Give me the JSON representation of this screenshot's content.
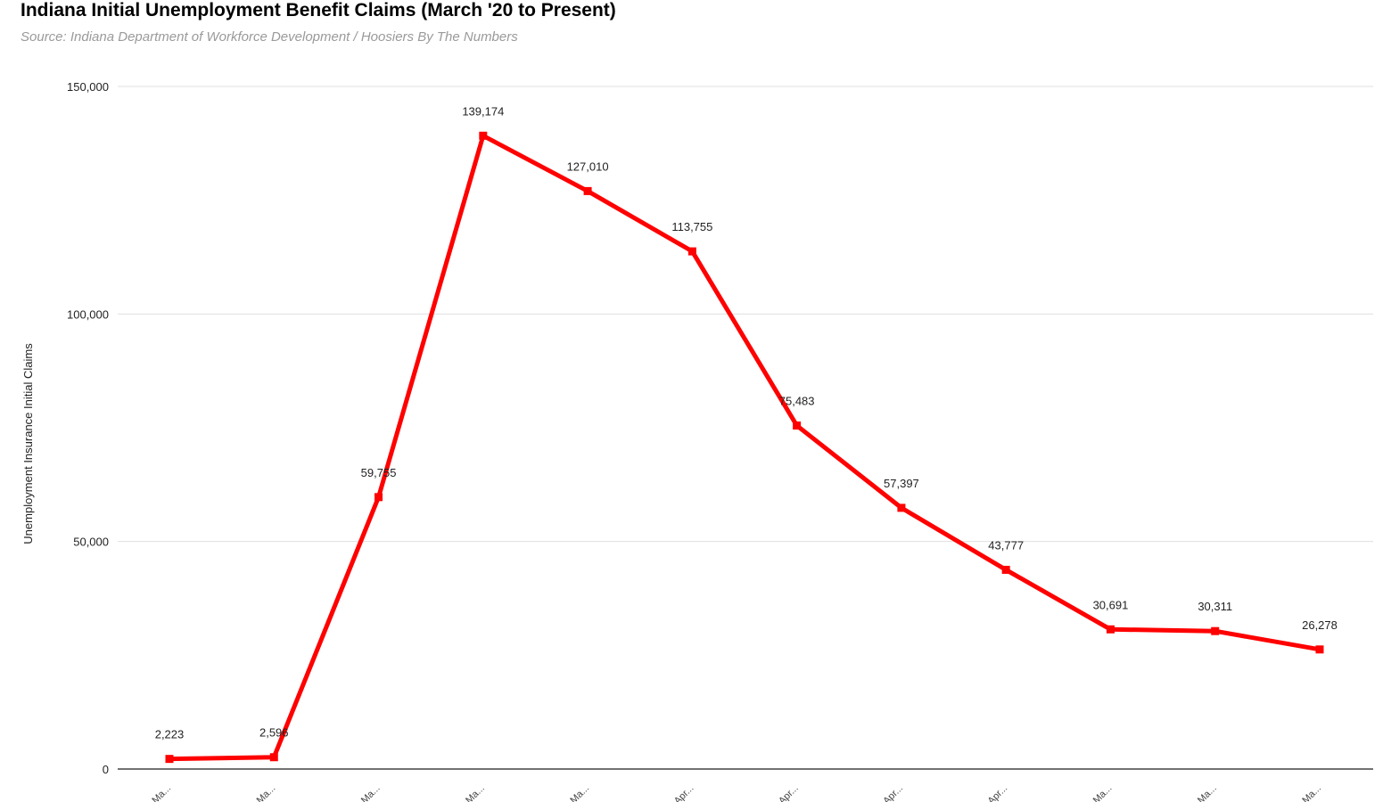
{
  "chart_data": {
    "type": "line",
    "title": "Indiana Initial Unemployment Benefit Claims (March '20 to Present)",
    "subtitle": "Source: Indiana Department of Workforce Development / Hoosiers By The Numbers",
    "xlabel": "",
    "ylabel": "Unemployment Insurance Initial Claims",
    "categories": [
      "Ma...",
      "Ma...",
      "Ma...",
      "Ma...",
      "Ma...",
      "Apr...",
      "Apr...",
      "Apr...",
      "Apr...",
      "Ma...",
      "Ma...",
      "Ma..."
    ],
    "series": [
      {
        "values": [
          2223,
          2596,
          59755,
          139174,
          127010,
          113755,
          75483,
          57397,
          43777,
          30691,
          30311,
          26278
        ],
        "data_labels": [
          "2,223",
          "2,596",
          "59,755",
          "139,174",
          "127,010",
          "113,755",
          "75,483",
          "57,397",
          "43,777",
          "30,691",
          "30,311",
          "26,278"
        ],
        "color": "#ff0000"
      }
    ],
    "ylim": [
      0,
      150000
    ],
    "yticks": [
      0,
      50000,
      100000,
      150000
    ],
    "ytick_labels": [
      "0",
      "50,000",
      "100,000",
      "150,000"
    ],
    "grid": true,
    "gridline_color": "#e0e0e0",
    "legend": "none"
  }
}
